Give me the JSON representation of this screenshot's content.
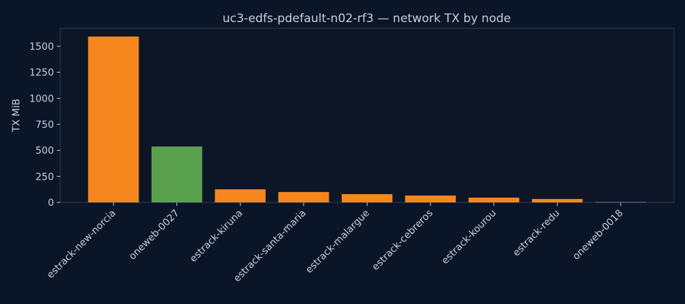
{
  "chart_data": {
    "type": "bar",
    "title": "uc3-edfs-pdefault-n02-rf3 — network TX by node",
    "y_label": "TX MiB",
    "categories": [
      "estrack-new-norcia",
      "oneweb-0027",
      "estrack-kiruna",
      "estrack-santa-maria",
      "estrack-malargue",
      "estrack-cebreros",
      "estrack-kourou",
      "estrack-redu",
      "oneweb-0018"
    ],
    "values": [
      1593,
      537,
      126,
      100,
      80,
      66,
      46,
      33,
      5
    ],
    "colors": [
      "#f5871f",
      "#59a14f",
      "#f5871f",
      "#f5871f",
      "#f5871f",
      "#f5871f",
      "#f5871f",
      "#f5871f",
      "#4e79a7"
    ],
    "ylim": [
      0,
      1672
    ],
    "yticks": [
      0,
      250,
      500,
      750,
      1000,
      1250,
      1500
    ],
    "grid": false
  }
}
